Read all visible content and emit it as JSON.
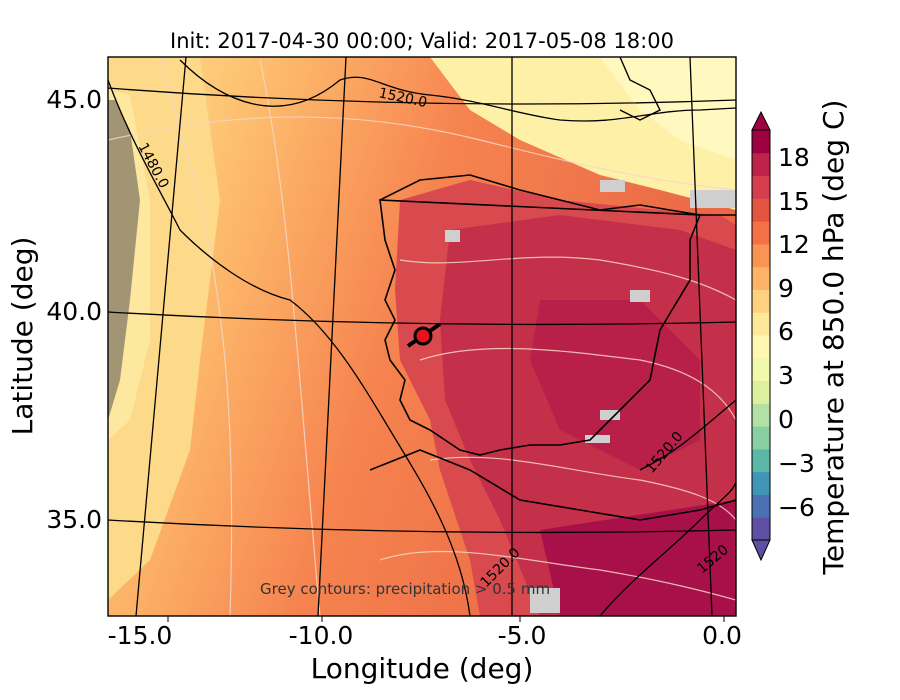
{
  "title": "Init: 2017-04-30 00:00; Valid: 2017-05-08 18:00",
  "axes": {
    "xlabel": "Longitude (deg)",
    "ylabel": "Latitude (deg)",
    "xticks": [
      "-15.0",
      "-10.0",
      "-5.0",
      "0.0"
    ],
    "yticks": [
      "45.0",
      "40.0",
      "35.0"
    ]
  },
  "colorbar": {
    "label": "Temperature at 850.0 hPa (deg C)",
    "ticks": [
      "18",
      "15",
      "12",
      "9",
      "6",
      "3",
      "0",
      "−3",
      "−6"
    ],
    "colors": [
      "#5e4fa2",
      "#4c70b4",
      "#3f96b7",
      "#5db7a9",
      "#88cfa4",
      "#b3e0a3",
      "#dcf09e",
      "#f1f9aa",
      "#fff7b2",
      "#fee899",
      "#fed07f",
      "#fdb466",
      "#f99455",
      "#f47146",
      "#e4553f",
      "#d53e4f",
      "#be2449",
      "#9e0142"
    ]
  },
  "contour_labels": [
    "1520.0",
    "1480.0",
    "1520.0",
    "1520.0",
    "1520"
  ],
  "note": "Grey contours: precipitation > 0.5 mm",
  "marker": {
    "label": "location-marker",
    "lon": -7.6,
    "lat": 39.3
  },
  "colors": {
    "land_outline": "#000000",
    "marker": "#e8121b"
  }
}
